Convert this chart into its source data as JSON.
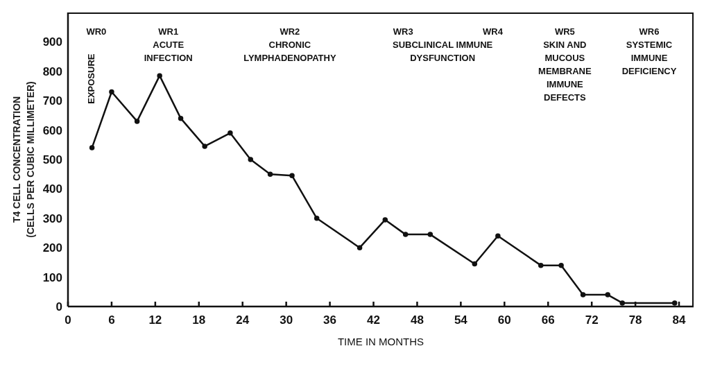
{
  "chart_data": {
    "type": "line",
    "xlabel": "TIME IN MONTHS",
    "ylabel": "T4 CELL CONCENTRATION\n(CELLS PER CUBIC MILLIMETER)",
    "annotations": [
      "WR0",
      "EXPOSURE",
      "WR1\nACUTE\nINFECTION",
      "WR2\nCHRONIC\nLYMPHADENOPATHY",
      "WR3",
      "WR4",
      "SUBCLINICAL IMMUNE\nDYSFUNCTION",
      "WR5\nSKIN AND\nMUCOUS\nMEMBRANE\nIMMUNE\nDEFECTS",
      "WR6\nSYSTEMIC\nIMMUNE\nDEFICIENCY"
    ],
    "x": [
      3.3,
      6,
      9.5,
      12.6,
      15.5,
      18.8,
      22.3,
      25.1,
      27.8,
      30.8,
      34.2,
      40.1,
      43.6,
      46.4,
      49.8,
      55.9,
      59.1,
      65,
      67.8,
      70.8,
      74.2,
      76.2,
      83.4
    ],
    "series": [
      {
        "color": "#111111",
        "values": [
          540,
          730,
          630,
          785,
          640,
          545,
          590,
          500,
          450,
          445,
          300,
          200,
          295,
          245,
          245,
          145,
          240,
          140,
          140,
          40,
          40,
          12,
          12
        ]
      }
    ],
    "xlim": [
      0,
      86
    ],
    "ylim": [
      0,
      1000
    ],
    "xticks": [
      0,
      6,
      12,
      18,
      24,
      30,
      36,
      42,
      48,
      54,
      60,
      66,
      72,
      78,
      84
    ],
    "yticks": [
      0,
      100,
      200,
      300,
      400,
      500,
      600,
      700,
      800,
      900
    ],
    "marker": "circle",
    "line_style": "solid"
  }
}
